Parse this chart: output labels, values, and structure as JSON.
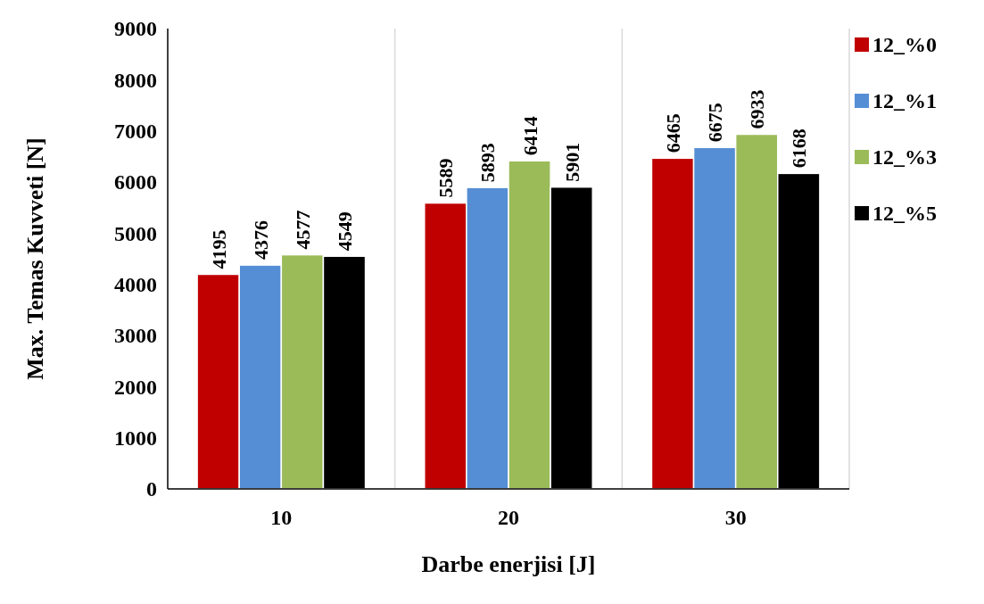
{
  "chart_data": {
    "type": "bar",
    "xlabel": "Darbe enerjisi [J]",
    "ylabel": "Max. Temas Kuvveti [N]",
    "categories": [
      "10",
      "20",
      "30"
    ],
    "series": [
      {
        "name": "12_%0",
        "color": "#c00000",
        "values": [
          4195,
          5589,
          6465
        ]
      },
      {
        "name": "12_%1",
        "color": "#558ed5",
        "values": [
          4376,
          5893,
          6675
        ]
      },
      {
        "name": "12_%3",
        "color": "#9bbb59",
        "values": [
          4577,
          6414,
          6933
        ]
      },
      {
        "name": "12_%5",
        "color": "#000000",
        "values": [
          4549,
          5901,
          6168
        ]
      }
    ],
    "ylim": [
      0,
      9000
    ],
    "yticks": [
      0,
      1000,
      2000,
      3000,
      4000,
      5000,
      6000,
      7000,
      8000,
      9000
    ],
    "grid": "x",
    "legend": "top right",
    "data_labels": true
  }
}
